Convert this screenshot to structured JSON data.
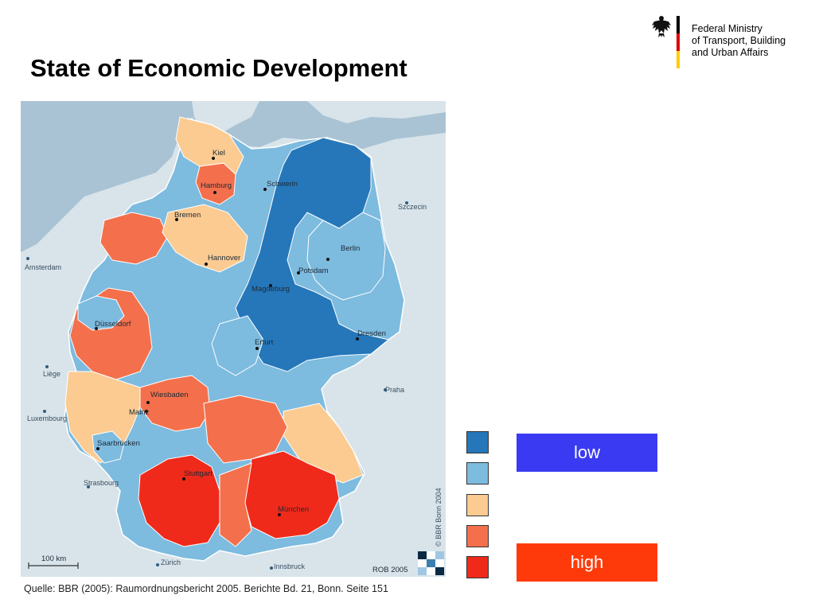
{
  "slide": {
    "title": "State of Economic Development"
  },
  "ministry": {
    "lines": [
      "Federal Ministry",
      "of Transport, Building",
      "and Urban Affairs"
    ],
    "flag_colors": [
      "#000000",
      "#dd0000",
      "#ffcc00"
    ]
  },
  "map": {
    "cities": {
      "kiel": "Kiel",
      "hamburg": "Hamburg",
      "schwerin": "Schwerin",
      "bremen": "Bremen",
      "hannover": "Hannover",
      "berlin": "Berlin",
      "potsdam": "Potsdam",
      "magdeburg": "Magdeburg",
      "dusseldorf": "Düsseldorf",
      "erfurt": "Erfurt",
      "dresden": "Dresden",
      "wiesbaden": "Wiesbaden",
      "mainz": "Mainz",
      "saarbrucken": "Saarbrücken",
      "stuttgart": "Stuttgart",
      "munchen": "München"
    },
    "foreign_places": {
      "amsterdam": "Amsterdam",
      "szczecin": "Szczecin",
      "liege": "Liège",
      "luxembourg": "Luxembourg",
      "praha": "Praha",
      "strasbourg": "Strasbourg",
      "zurich": "Zürich",
      "innsbruck": "Innsbruck"
    },
    "scale_label": "100 km",
    "copyright": "© BBR Bonn 2004",
    "rob_label": "ROB 2005"
  },
  "source_caption": "Quelle: BBR (2005): Raumordnungsbericht 2005. Berichte Bd. 21, Bonn. Seite 151",
  "legend": {
    "swatch_colors": [
      "#2577ba",
      "#7dbbdf",
      "#fbcb92",
      "#f4704c",
      "#f02a1a"
    ],
    "low_label": "low",
    "high_label": "high",
    "low_color": "#3a3af2",
    "high_color": "#ff3a0a"
  },
  "colors": {
    "sea": "#a9c3d4",
    "foreign_land": "#d8e4ea",
    "border": "#ffffff"
  }
}
